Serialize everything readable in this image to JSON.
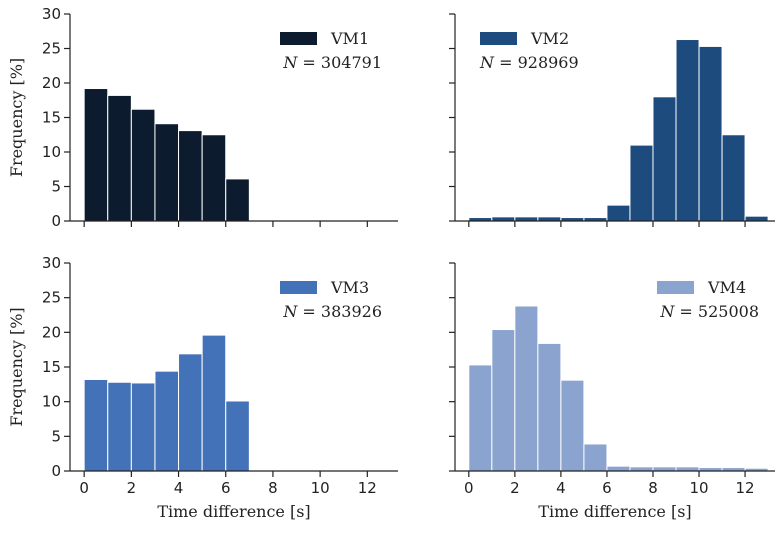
{
  "chart_data": [
    {
      "type": "bar",
      "legend_label": "VM1",
      "n_prefix": "N",
      "n_text": " = 304791",
      "color": "#0d1b2e",
      "bin_width": 1,
      "bin_starts": [
        0,
        1,
        2,
        3,
        4,
        5,
        6,
        7,
        8,
        9,
        10,
        11,
        12
      ],
      "values": [
        19.2,
        18.2,
        16.2,
        14.1,
        13.1,
        12.5,
        6.1,
        0,
        0,
        0,
        0,
        0,
        0
      ],
      "xlim": [
        -0.6,
        13.3
      ],
      "ylim": [
        0,
        30
      ],
      "ylabel": "Frequency [%]",
      "xlabel": "",
      "show_y_ticklabels": true,
      "show_x_ticklabels": false,
      "legend_position": "top-right"
    },
    {
      "type": "bar",
      "legend_label": "VM2",
      "n_prefix": "N",
      "n_text": " = 928969",
      "color": "#1e4b7d",
      "bin_width": 1,
      "bin_starts": [
        0,
        1,
        2,
        3,
        4,
        5,
        6,
        7,
        8,
        9,
        10,
        11,
        12
      ],
      "values": [
        0.5,
        0.6,
        0.6,
        0.6,
        0.5,
        0.5,
        2.3,
        11.0,
        18.0,
        26.3,
        25.3,
        12.5,
        0.7
      ],
      "xlim": [
        -0.6,
        13.3
      ],
      "ylim": [
        0,
        30
      ],
      "ylabel": "",
      "xlabel": "",
      "show_y_ticklabels": false,
      "show_x_ticklabels": false,
      "legend_position": "top-left"
    },
    {
      "type": "bar",
      "legend_label": "VM3",
      "n_prefix": "N",
      "n_text": " = 383926",
      "color": "#4472b8",
      "bin_width": 1,
      "bin_starts": [
        0,
        1,
        2,
        3,
        4,
        5,
        6,
        7,
        8,
        9,
        10,
        11,
        12
      ],
      "values": [
        13.2,
        12.8,
        12.7,
        14.4,
        16.9,
        19.6,
        10.1,
        0,
        0,
        0,
        0,
        0,
        0
      ],
      "xlim": [
        -0.6,
        13.3
      ],
      "ylim": [
        0,
        30
      ],
      "ylabel": "Frequency [%]",
      "xlabel": "Time difference [s]",
      "show_y_ticklabels": true,
      "show_x_ticklabels": true,
      "legend_position": "top-right"
    },
    {
      "type": "bar",
      "legend_label": "VM4",
      "n_prefix": "N",
      "n_text": " = 525008",
      "color": "#8aa3cf",
      "bin_width": 1,
      "bin_starts": [
        0,
        1,
        2,
        3,
        4,
        5,
        6,
        7,
        8,
        9,
        10,
        11,
        12
      ],
      "values": [
        15.3,
        20.4,
        23.8,
        18.4,
        13.1,
        3.9,
        0.7,
        0.6,
        0.6,
        0.6,
        0.5,
        0.5,
        0.4
      ],
      "xlim": [
        -0.6,
        13.3
      ],
      "ylim": [
        0,
        30
      ],
      "ylabel": "",
      "xlabel": "Time difference [s]",
      "show_y_ticklabels": false,
      "show_x_ticklabels": true,
      "legend_position": "top-right"
    }
  ],
  "axes": {
    "x_ticks": [
      0,
      2,
      4,
      6,
      8,
      10,
      12
    ],
    "y_ticks": [
      0,
      5,
      10,
      15,
      20,
      25,
      30
    ],
    "x_tick_labels": [
      "0",
      "2",
      "4",
      "6",
      "8",
      "10",
      "12"
    ],
    "y_tick_labels": [
      "0",
      "5",
      "10",
      "15",
      "20",
      "25",
      "30"
    ]
  }
}
